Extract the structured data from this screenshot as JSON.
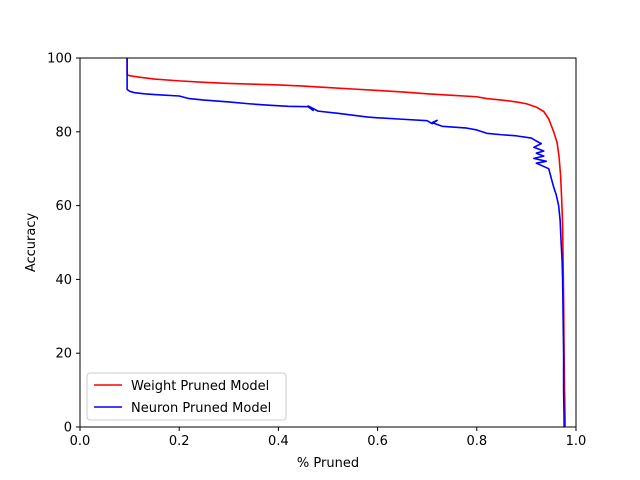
{
  "chart_data": {
    "type": "line",
    "title": "",
    "xlabel": "% Pruned",
    "ylabel": "Accuracy",
    "xlim": [
      0.0,
      1.0
    ],
    "ylim": [
      0,
      100
    ],
    "xticks": [
      "0.0",
      "0.2",
      "0.4",
      "0.6",
      "0.8",
      "1.0"
    ],
    "yticks": [
      "0",
      "20",
      "40",
      "60",
      "80",
      "100"
    ],
    "grid": false,
    "legend_position": "lower-left",
    "series": [
      {
        "name": "Weight Pruned Model",
        "color": "#ff0000",
        "x": [
          0.095,
          0.095,
          0.1,
          0.12,
          0.15,
          0.2,
          0.25,
          0.3,
          0.35,
          0.4,
          0.45,
          0.5,
          0.55,
          0.6,
          0.65,
          0.7,
          0.75,
          0.8,
          0.82,
          0.85,
          0.88,
          0.9,
          0.92,
          0.935,
          0.945,
          0.955,
          0.962,
          0.966,
          0.969,
          0.971,
          0.973,
          0.974,
          0.975,
          0.976,
          0.977,
          0.978,
          0.978
        ],
        "y": [
          100,
          95.5,
          95.2,
          94.8,
          94.3,
          93.8,
          93.4,
          93.1,
          92.9,
          92.7,
          92.4,
          92.0,
          91.6,
          91.2,
          90.8,
          90.3,
          89.9,
          89.5,
          89.0,
          88.6,
          88.1,
          87.6,
          86.7,
          85.5,
          83.5,
          80.0,
          77.0,
          73.0,
          68.0,
          62.0,
          55.0,
          45.0,
          35.0,
          20.0,
          10.0,
          2.0,
          0
        ]
      },
      {
        "name": "Neuron Pruned Model",
        "color": "#0000ff",
        "x": [
          0.095,
          0.095,
          0.1,
          0.11,
          0.13,
          0.15,
          0.2,
          0.22,
          0.25,
          0.3,
          0.34,
          0.38,
          0.42,
          0.46,
          0.47,
          0.46,
          0.48,
          0.52,
          0.55,
          0.58,
          0.6,
          0.65,
          0.7,
          0.71,
          0.72,
          0.71,
          0.73,
          0.78,
          0.8,
          0.82,
          0.85,
          0.88,
          0.91,
          0.92,
          0.93,
          0.915,
          0.935,
          0.92,
          0.935,
          0.915,
          0.94,
          0.92,
          0.945,
          0.95,
          0.955,
          0.96,
          0.965,
          0.968,
          0.97,
          0.972,
          0.973,
          0.974,
          0.975,
          0.975,
          0.976,
          0.976
        ],
        "y": [
          100,
          91.5,
          91.0,
          90.6,
          90.3,
          90.1,
          89.7,
          89.0,
          88.6,
          88.1,
          87.6,
          87.2,
          86.9,
          86.8,
          85.8,
          87.0,
          85.6,
          85.0,
          84.5,
          84.0,
          83.8,
          83.4,
          83.0,
          82.2,
          83.1,
          82.5,
          81.5,
          81.0,
          80.5,
          79.6,
          79.2,
          78.9,
          78.3,
          77.5,
          76.8,
          75.8,
          74.8,
          74.2,
          73.4,
          72.8,
          72.0,
          71.5,
          70.0,
          67.5,
          65.0,
          63.0,
          60.0,
          56.0,
          50.0,
          45.0,
          40.0,
          30.0,
          20.0,
          10.0,
          2.0,
          0
        ]
      }
    ]
  }
}
